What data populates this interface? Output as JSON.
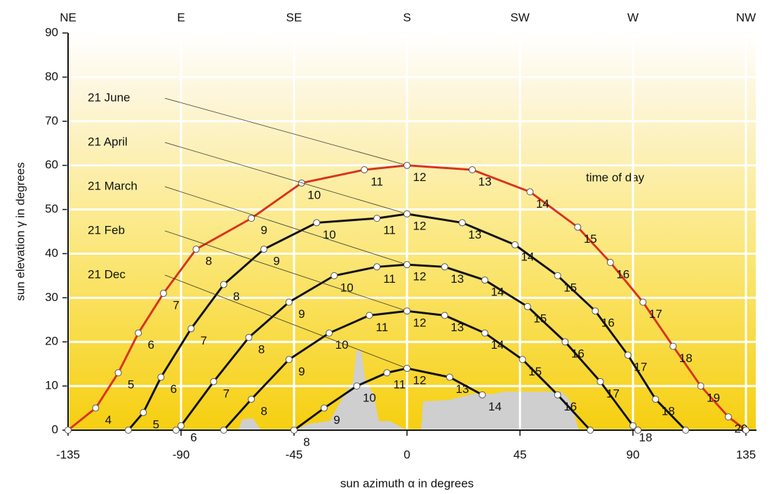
{
  "chart_data": {
    "type": "line",
    "ylabel": "sun elevation γ in degrees",
    "xlabel": "sun azimuth α in degrees",
    "annotation": "time of day",
    "xlim": [
      -135,
      135
    ],
    "xticks": [
      -135,
      -90,
      -45,
      0,
      45,
      90,
      135
    ],
    "x2ticks": [
      {
        "value": -135,
        "label": "NE"
      },
      {
        "value": -90,
        "label": "E"
      },
      {
        "value": -45,
        "label": "SE"
      },
      {
        "value": 0,
        "label": "S"
      },
      {
        "value": 45,
        "label": "SW"
      },
      {
        "value": 90,
        "label": "W"
      },
      {
        "value": 135,
        "label": "NW"
      }
    ],
    "ylim": [
      0,
      90
    ],
    "yticks": [
      0,
      10,
      20,
      30,
      40,
      50,
      60,
      70,
      80,
      90
    ],
    "grid": true,
    "series": [
      {
        "name": "21 June",
        "color": "#d9341c",
        "x": [
          -135,
          -124,
          -115,
          -107,
          -97,
          -84,
          -62,
          -42,
          -17,
          0,
          26,
          49,
          68,
          81,
          94,
          106,
          117,
          128,
          135
        ],
        "values": [
          0,
          5,
          13,
          22,
          31,
          41,
          48,
          56,
          59,
          60,
          59,
          54,
          46,
          38,
          29,
          19,
          10,
          3,
          0
        ],
        "labels": [
          null,
          4,
          5,
          6,
          7,
          8,
          9,
          10,
          11,
          12,
          13,
          14,
          15,
          16,
          17,
          18,
          19,
          20,
          null
        ]
      },
      {
        "name": "21 April",
        "color": "#111111",
        "x": [
          -111,
          -105,
          -98,
          -86,
          -73,
          -57,
          -36,
          -12,
          0,
          22,
          43,
          60,
          75,
          88,
          99,
          111
        ],
        "values": [
          0,
          4,
          12,
          23,
          33,
          41,
          47,
          48,
          49,
          47,
          42,
          35,
          27,
          17,
          7,
          0
        ],
        "labels": [
          null,
          5,
          6,
          7,
          8,
          9,
          10,
          11,
          12,
          13,
          14,
          15,
          16,
          17,
          18,
          null
        ]
      },
      {
        "name": "21 March",
        "color": "#111111",
        "x": [
          -92,
          -90,
          -77,
          -63,
          -47,
          -29,
          -12,
          0,
          15,
          31,
          48,
          63,
          77,
          90,
          92
        ],
        "values": [
          0,
          1,
          11,
          21,
          29,
          35,
          37,
          37.5,
          37,
          34,
          28,
          20,
          11,
          1,
          0
        ],
        "labels": [
          null,
          6,
          7,
          8,
          9,
          10,
          11,
          12,
          13,
          14,
          15,
          16,
          17,
          18,
          null
        ]
      },
      {
        "name": "21 Feb",
        "color": "#111111",
        "x": [
          -73,
          -62,
          -47,
          -31,
          -15,
          0,
          15,
          31,
          46,
          60,
          73
        ],
        "values": [
          0,
          7,
          16,
          22,
          26,
          27,
          26,
          22,
          16,
          8,
          0
        ],
        "labels": [
          null,
          8,
          9,
          10,
          11,
          12,
          13,
          14,
          15,
          16,
          null
        ]
      },
      {
        "name": "21 Dec",
        "color": "#111111",
        "x": [
          -45,
          -33,
          -20,
          -8,
          0,
          17,
          30
        ],
        "values": [
          0,
          5,
          10,
          13,
          14,
          12,
          8
        ],
        "labels": [
          8,
          9,
          10,
          11,
          12,
          13,
          14
        ]
      }
    ]
  }
}
